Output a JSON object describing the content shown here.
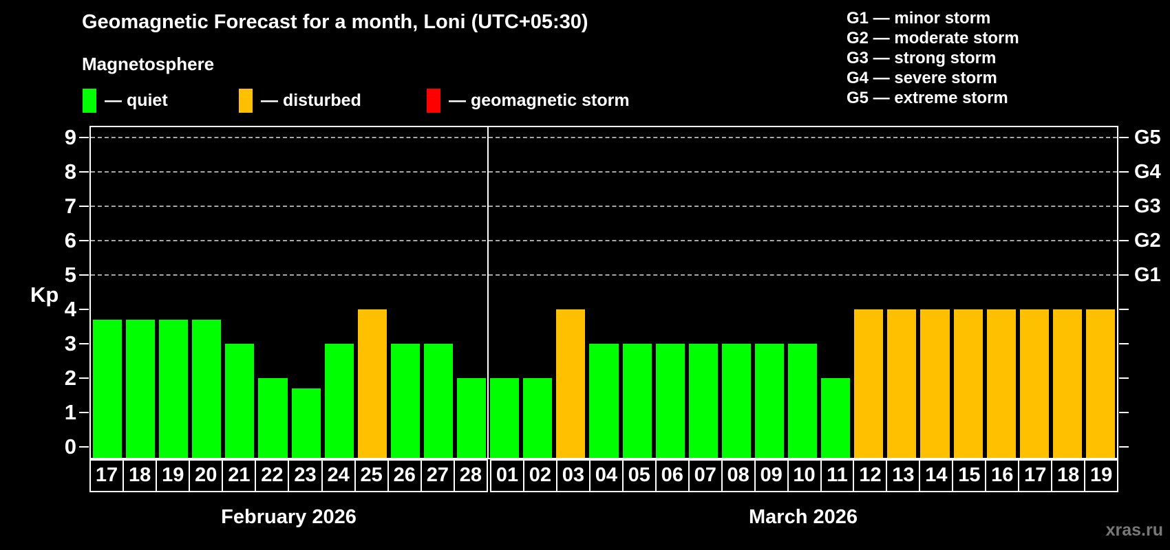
{
  "title": "Geomagnetic Forecast for a month, Loni (UTC+05:30)",
  "subtitle": "Magnetosphere",
  "legend": {
    "items": [
      {
        "name": "quiet",
        "label": "— quiet",
        "color": "#00ff00"
      },
      {
        "name": "disturbed",
        "label": "— disturbed",
        "color": "#ffc000"
      },
      {
        "name": "storm",
        "label": "— geomagnetic storm",
        "color": "#ff0000"
      }
    ]
  },
  "g_legend": [
    "G1 — minor storm",
    "G2 — moderate storm",
    "G3 — strong storm",
    "G4 — severe storm",
    "G5 — extreme storm"
  ],
  "chart_data": {
    "type": "bar",
    "ylabel": "Kp",
    "ylim": [
      0,
      9
    ],
    "yticks": [
      0,
      1,
      2,
      3,
      4,
      5,
      6,
      7,
      8,
      9
    ],
    "gridlines_at": [
      5,
      6,
      7,
      8,
      9
    ],
    "grid": "dashed horizontal at storm levels only",
    "right_axis": [
      {
        "kp": 5,
        "label": "G1"
      },
      {
        "kp": 6,
        "label": "G2"
      },
      {
        "kp": 7,
        "label": "G3"
      },
      {
        "kp": 8,
        "label": "G4"
      },
      {
        "kp": 9,
        "label": "G5"
      }
    ],
    "colors": {
      "quiet": "#00ff00",
      "disturbed": "#ffc000",
      "storm": "#ff0000"
    },
    "months": [
      {
        "label": "February 2026",
        "days": [
          "17",
          "18",
          "19",
          "20",
          "21",
          "22",
          "23",
          "24",
          "25",
          "26",
          "27",
          "28"
        ],
        "values": [
          3.7,
          3.7,
          3.7,
          3.7,
          3,
          2,
          1.7,
          3,
          4,
          3,
          3,
          2
        ],
        "states": [
          "quiet",
          "quiet",
          "quiet",
          "quiet",
          "quiet",
          "quiet",
          "quiet",
          "quiet",
          "disturbed",
          "quiet",
          "quiet",
          "quiet"
        ]
      },
      {
        "label": "March 2026",
        "days": [
          "01",
          "02",
          "03",
          "04",
          "05",
          "06",
          "07",
          "08",
          "09",
          "10",
          "11",
          "12",
          "13",
          "14",
          "15",
          "16",
          "17",
          "18",
          "19"
        ],
        "values": [
          2,
          2,
          4,
          3,
          3,
          3,
          3,
          3,
          3,
          3,
          2,
          4,
          4,
          4,
          4,
          4,
          4,
          4,
          4
        ],
        "states": [
          "quiet",
          "quiet",
          "disturbed",
          "quiet",
          "quiet",
          "quiet",
          "quiet",
          "quiet",
          "quiet",
          "quiet",
          "quiet",
          "disturbed",
          "disturbed",
          "disturbed",
          "disturbed",
          "disturbed",
          "disturbed",
          "disturbed",
          "disturbed"
        ]
      }
    ]
  },
  "watermark": "xras.ru"
}
